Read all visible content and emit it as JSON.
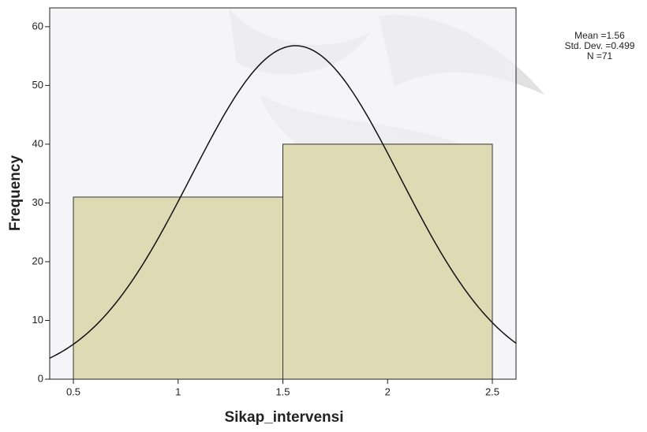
{
  "chart_data": {
    "type": "histogram",
    "x_label": "Sikap_intervensi",
    "y_label": "Frequency",
    "bins": [
      0.5,
      1.5,
      2.5
    ],
    "counts": [
      31,
      40
    ],
    "color": "#dedab4",
    "curve_color": "#111111",
    "plot_background": "#f2f2f4",
    "xlim": [
      0.387,
      2.613
    ],
    "ylim": [
      0,
      63.2
    ],
    "xticks": [
      0.5,
      1,
      1.5,
      2,
      2.5
    ],
    "yticks": [
      0,
      10,
      20,
      30,
      40,
      50,
      60
    ],
    "stats": {
      "mean": {
        "value": 1.56,
        "label": "Mean =1.56"
      },
      "std": {
        "value": 0.499,
        "label": "Std. Dev. =0.499"
      },
      "n": {
        "value": 71,
        "label": "N =71"
      }
    },
    "normal_curve": true
  }
}
